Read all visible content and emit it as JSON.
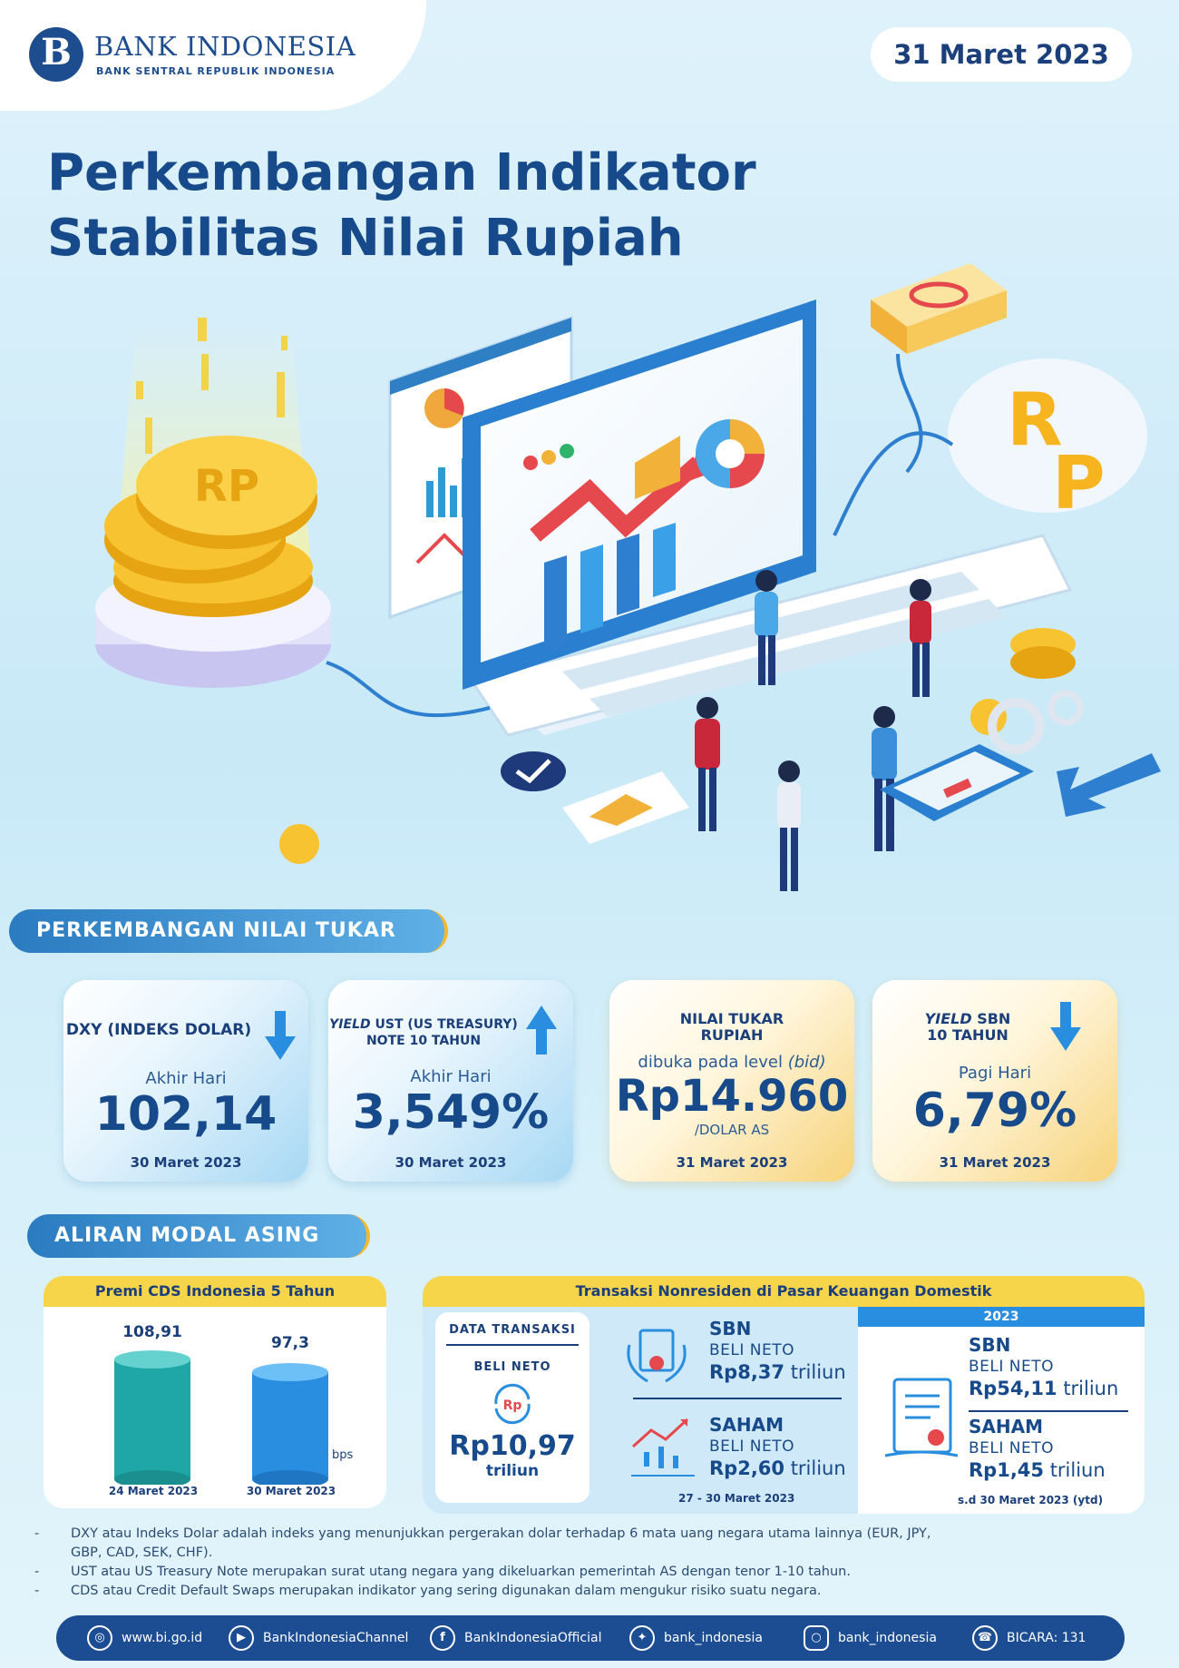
{
  "header": {
    "bank_name": "BANK INDONESIA",
    "bank_subtitle": "BANK SENTRAL REPUBLIK INDONESIA",
    "date": "31 Maret 2023",
    "title_line1": "Perkembangan Indikator",
    "title_line2": "Stabilitas Nilai Rupiah"
  },
  "exchange": {
    "section_title": "PERKEMBANGAN NILAI TUKAR",
    "cards": [
      {
        "heading": "DXY (INDEKS DOLAR)",
        "label": "Akhir Hari",
        "value": "102,14",
        "date": "30 Maret 2023",
        "trend": "down"
      },
      {
        "heading_italic": "YIELD",
        "heading_rest": " UST (US TREASURY)",
        "heading_line2": "NOTE  10 TAHUN",
        "label": "Akhir Hari",
        "value": "3,549%",
        "date": "30 Maret 2023",
        "trend": "up"
      },
      {
        "heading": "NILAI TUKAR",
        "heading_line2": "RUPIAH",
        "label": "dibuka pada level",
        "label_italic": "(bid)",
        "value": "Rp14.960",
        "unit": "/DOLAR AS",
        "date": "31 Maret 2023"
      },
      {
        "heading_italic": "YIELD",
        "heading_rest": " SBN",
        "heading_line2": "10 TAHUN",
        "label": "Pagi Hari",
        "value": "6,79%",
        "date": "31 Maret 2023",
        "trend": "down"
      }
    ]
  },
  "capital": {
    "section_title": "ALIRAN MODAL ASING",
    "cds": {
      "title": "Premi CDS Indonesia 5 Tahun",
      "unit": "bps",
      "bars": [
        {
          "value": "108,91",
          "date": "24 Maret 2023",
          "color": "#1fa6a6"
        },
        {
          "value": "97,3",
          "date": "30 Maret 2023",
          "color": "#2a8ee0"
        }
      ]
    },
    "nonresident": {
      "title": "Transaksi Nonresiden di Pasar Keuangan Domestik",
      "data_label": "DATA TRANSAKSI",
      "total_label": "BELI NETO",
      "total_value": "Rp10,97",
      "total_unit": "triliun",
      "weekly": {
        "sbn_title": "SBN",
        "sbn_label": "BELI NETO",
        "sbn_value": "Rp8,37",
        "sbn_unit": " triliun",
        "saham_title": "SAHAM",
        "saham_label": "BELI NETO",
        "saham_value": "Rp2,60",
        "saham_unit": " triliun",
        "period": "27 - 30 Maret 2023"
      },
      "ytd": {
        "year": "2023",
        "sbn_title": "SBN",
        "sbn_label": "BELI NETO",
        "sbn_value": "Rp54,11",
        "sbn_unit": " triliun",
        "saham_title": "SAHAM",
        "saham_label": "BELI NETO",
        "saham_value": "Rp1,45",
        "saham_unit": " triliun",
        "period": "s.d 30 Maret 2023 (ytd)"
      }
    }
  },
  "notes": [
    "DXY atau Indeks Dolar adalah indeks yang menunjukkan pergerakan dolar terhadap 6 mata uang negara utama lainnya (EUR, JPY, GBP, CAD, SEK, CHF).",
    "UST atau US Treasury Note merupakan surat utang negara yang dikeluarkan pemerintah AS dengan tenor 1-10 tahun.",
    "CDS atau Credit Default Swaps merupakan indikator yang sering digunakan dalam mengukur risiko suatu negara."
  ],
  "footer": [
    {
      "icon": "globe-icon",
      "text": "www.bi.go.id"
    },
    {
      "icon": "play-icon",
      "text": "BankIndonesiaChannel"
    },
    {
      "icon": "facebook-icon",
      "text": "BankIndonesiaOfficial"
    },
    {
      "icon": "twitter-icon",
      "text": "bank_indonesia"
    },
    {
      "icon": "instagram-icon",
      "text": "bank_indonesia"
    },
    {
      "icon": "phone-icon",
      "text": "BICARA: 131"
    }
  ]
}
